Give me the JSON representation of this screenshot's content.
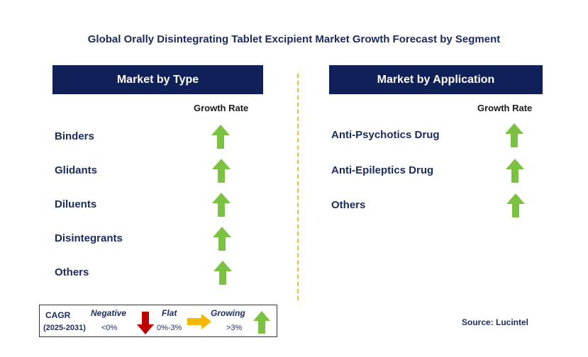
{
  "title": "Global Orally Disintegrating Tablet Excipient Market Growth Forecast by Segment",
  "left_panel": {
    "header": "Market by Type",
    "growth_label": "Growth Rate",
    "rows": [
      {
        "label": "Binders",
        "trend": "growing"
      },
      {
        "label": "Glidants",
        "trend": "growing"
      },
      {
        "label": "Diluents",
        "trend": "growing"
      },
      {
        "label": "Disintegrants",
        "trend": "growing"
      },
      {
        "label": "Others",
        "trend": "growing"
      }
    ]
  },
  "right_panel": {
    "header": "Market by Application",
    "growth_label": "Growth Rate",
    "rows": [
      {
        "label": "Anti-Psychotics Drug",
        "trend": "growing"
      },
      {
        "label": "Anti-Epileptics Drug",
        "trend": "growing"
      },
      {
        "label": "Others",
        "trend": "growing"
      }
    ]
  },
  "legend": {
    "cagr": "CAGR",
    "period": "(2025-2031)",
    "negative": {
      "label": "Negative",
      "range": "<0%",
      "icon": "red-down-arrow-icon"
    },
    "flat": {
      "label": "Flat",
      "range": "0%-3%",
      "icon": "yellow-right-arrow-icon"
    },
    "growing": {
      "label": "Growing",
      "range": ">3%",
      "icon": "green-up-arrow-icon"
    }
  },
  "source": "Source: Lucintel",
  "colors": {
    "header_bg": "#0f2158",
    "text": "#1b2a5c",
    "growing": "#7cc242",
    "flat": "#f5b800",
    "negative": "#c00000",
    "divider": "#f5b82e"
  }
}
